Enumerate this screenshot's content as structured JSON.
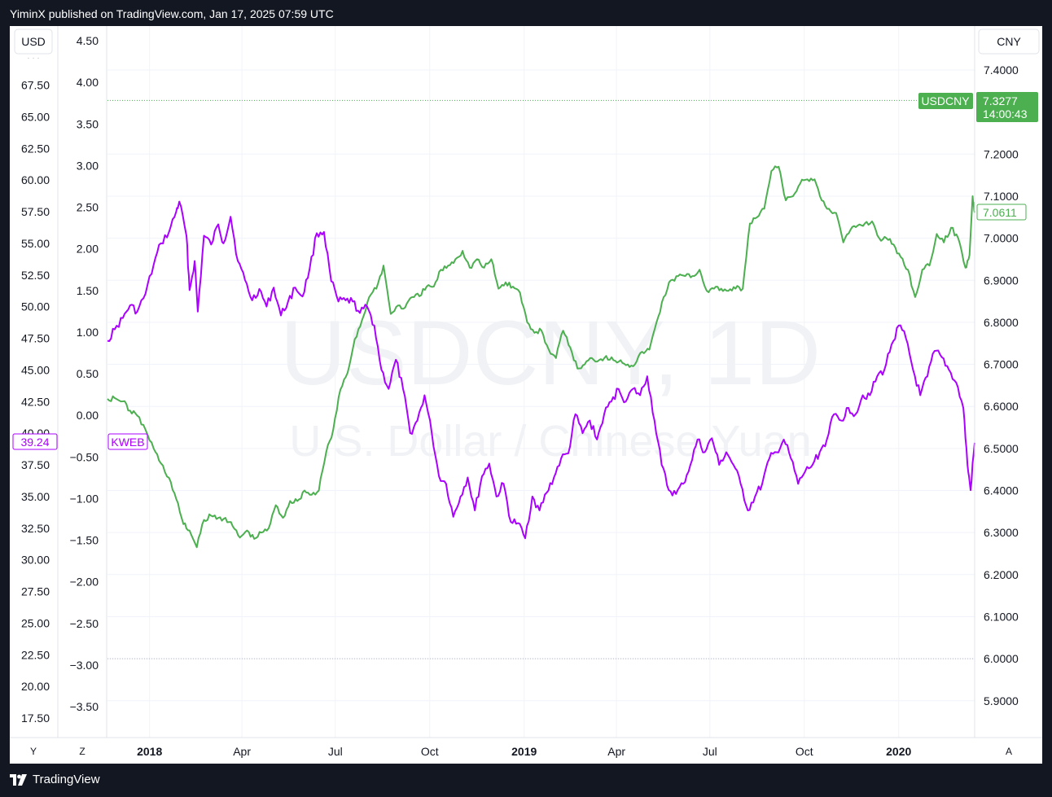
{
  "header": {
    "published": "YiminX published on TradingView.com, Jan 17, 2025 07:59 UTC"
  },
  "footer": {
    "brand": "TradingView"
  },
  "chart_data": {
    "type": "line",
    "watermark": {
      "symbol": "USDCNY, 1D",
      "description": "U.S. Dollar / Chinese Yuan"
    },
    "x_axis": {
      "labels": [
        "2018",
        "Apr",
        "Jul",
        "Oct",
        "2019",
        "Apr",
        "Jul",
        "Oct",
        "2020"
      ],
      "bold": [
        "2018",
        "2019",
        "2020"
      ],
      "range": [
        "2017-11-21",
        "2020-03-15"
      ]
    },
    "left_axis_1": {
      "unit": "USD",
      "ticks": [
        "67.50",
        "65.00",
        "62.50",
        "60.00",
        "57.50",
        "55.00",
        "52.50",
        "50.00",
        "47.50",
        "45.00",
        "42.50",
        "40.00",
        "37.50",
        "35.00",
        "32.50",
        "30.00",
        "27.50",
        "25.00",
        "22.50",
        "20.00",
        "17.50"
      ]
    },
    "left_axis_2": {
      "ticks": [
        "4.50",
        "4.00",
        "3.50",
        "3.00",
        "2.50",
        "2.00",
        "1.50",
        "1.00",
        "0.50",
        "0.00",
        "−0.50",
        "−1.00",
        "−1.50",
        "−2.00",
        "−2.50",
        "−3.00",
        "−3.50"
      ]
    },
    "right_axis": {
      "unit": "CNY",
      "ticks": [
        "7.4000",
        "7.2000",
        "7.1000",
        "7.0000",
        "6.9000",
        "6.8000",
        "6.7000",
        "6.6000",
        "6.5000",
        "6.4000",
        "6.3000",
        "6.2000",
        "6.1000",
        "6.0000",
        "5.9000"
      ]
    },
    "corner_buttons": {
      "bottom_left": "Y",
      "bottom_mid": "Z",
      "bottom_right": "A"
    },
    "reference_lines": {
      "upper_cny": 7.3277,
      "lower_cny": 6.0
    },
    "colors": {
      "usdcny": "#4CAF50",
      "kweb": "#AA00FF",
      "grid": "#F0F3FA",
      "text": "#131722"
    },
    "labels": {
      "usdcny_symbol": "USDCNY",
      "usdcny_live": "7.3277",
      "usdcny_countdown": "14:00:43",
      "usdcny_last": "7.0611",
      "kweb_symbol": "KWEB",
      "kweb_last": "39.24"
    },
    "series": [
      {
        "name": "USDCNY",
        "axis": "CNY",
        "points": [
          [
            "2017-11-21",
            6.618
          ],
          [
            "2017-11-28",
            6.62
          ],
          [
            "2017-12-06",
            6.612
          ],
          [
            "2017-12-13",
            6.59
          ],
          [
            "2017-12-20",
            6.578
          ],
          [
            "2017-12-28",
            6.545
          ],
          [
            "2018-01-05",
            6.5
          ],
          [
            "2018-01-12",
            6.465
          ],
          [
            "2018-01-20",
            6.43
          ],
          [
            "2018-01-27",
            6.38
          ],
          [
            "2018-02-03",
            6.32
          ],
          [
            "2018-02-09",
            6.305
          ],
          [
            "2018-02-16",
            6.265
          ],
          [
            "2018-02-23",
            6.33
          ],
          [
            "2018-03-02",
            6.34
          ],
          [
            "2018-03-09",
            6.335
          ],
          [
            "2018-03-16",
            6.335
          ],
          [
            "2018-03-23",
            6.315
          ],
          [
            "2018-03-30",
            6.288
          ],
          [
            "2018-04-06",
            6.305
          ],
          [
            "2018-04-13",
            6.285
          ],
          [
            "2018-04-20",
            6.3
          ],
          [
            "2018-04-27",
            6.31
          ],
          [
            "2018-05-04",
            6.365
          ],
          [
            "2018-05-11",
            6.335
          ],
          [
            "2018-05-18",
            6.375
          ],
          [
            "2018-05-25",
            6.375
          ],
          [
            "2018-06-01",
            6.4
          ],
          [
            "2018-06-08",
            6.39
          ],
          [
            "2018-06-15",
            6.4
          ],
          [
            "2018-06-22",
            6.49
          ],
          [
            "2018-06-29",
            6.545
          ],
          [
            "2018-07-06",
            6.64
          ],
          [
            "2018-07-13",
            6.68
          ],
          [
            "2018-07-20",
            6.76
          ],
          [
            "2018-07-27",
            6.805
          ],
          [
            "2018-08-03",
            6.86
          ],
          [
            "2018-08-10",
            6.88
          ],
          [
            "2018-08-17",
            6.935
          ],
          [
            "2018-08-24",
            6.82
          ],
          [
            "2018-08-31",
            6.84
          ],
          [
            "2018-09-07",
            6.835
          ],
          [
            "2018-09-14",
            6.86
          ],
          [
            "2018-09-21",
            6.862
          ],
          [
            "2018-09-28",
            6.885
          ],
          [
            "2018-10-05",
            6.885
          ],
          [
            "2018-10-12",
            6.925
          ],
          [
            "2018-10-19",
            6.935
          ],
          [
            "2018-10-26",
            6.95
          ],
          [
            "2018-11-02",
            6.97
          ],
          [
            "2018-11-09",
            6.93
          ],
          [
            "2018-11-16",
            6.95
          ],
          [
            "2018-11-23",
            6.93
          ],
          [
            "2018-11-30",
            6.95
          ],
          [
            "2018-12-07",
            6.88
          ],
          [
            "2018-12-14",
            6.895
          ],
          [
            "2018-12-21",
            6.885
          ],
          [
            "2018-12-28",
            6.87
          ],
          [
            "2019-01-04",
            6.8
          ],
          [
            "2019-01-11",
            6.775
          ],
          [
            "2019-01-18",
            6.78
          ],
          [
            "2019-01-25",
            6.735
          ],
          [
            "2019-02-01",
            6.715
          ],
          [
            "2019-02-08",
            6.78
          ],
          [
            "2019-02-15",
            6.74
          ],
          [
            "2019-02-22",
            6.69
          ],
          [
            "2019-03-01",
            6.7
          ],
          [
            "2019-03-08",
            6.715
          ],
          [
            "2019-03-15",
            6.71
          ],
          [
            "2019-03-22",
            6.72
          ],
          [
            "2019-03-29",
            6.71
          ],
          [
            "2019-04-05",
            6.71
          ],
          [
            "2019-04-12",
            6.7
          ],
          [
            "2019-04-19",
            6.7
          ],
          [
            "2019-04-26",
            6.73
          ],
          [
            "2019-05-03",
            6.735
          ],
          [
            "2019-05-10",
            6.8
          ],
          [
            "2019-05-17",
            6.86
          ],
          [
            "2019-05-24",
            6.9
          ],
          [
            "2019-05-31",
            6.91
          ],
          [
            "2019-06-07",
            6.91
          ],
          [
            "2019-06-14",
            6.91
          ],
          [
            "2019-06-21",
            6.925
          ],
          [
            "2019-06-28",
            6.875
          ],
          [
            "2019-07-05",
            6.88
          ],
          [
            "2019-07-12",
            6.88
          ],
          [
            "2019-07-19",
            6.875
          ],
          [
            "2019-07-26",
            6.88
          ],
          [
            "2019-08-02",
            6.88
          ],
          [
            "2019-08-09",
            7.035
          ],
          [
            "2019-08-16",
            7.05
          ],
          [
            "2019-08-23",
            7.07
          ],
          [
            "2019-08-30",
            7.16
          ],
          [
            "2019-09-06",
            7.17
          ],
          [
            "2019-09-13",
            7.09
          ],
          [
            "2019-09-20",
            7.1
          ],
          [
            "2019-09-27",
            7.13
          ],
          [
            "2019-10-04",
            7.14
          ],
          [
            "2019-10-11",
            7.14
          ],
          [
            "2019-10-18",
            7.09
          ],
          [
            "2019-10-25",
            7.07
          ],
          [
            "2019-11-01",
            7.06
          ],
          [
            "2019-11-08",
            6.99
          ],
          [
            "2019-11-15",
            7.02
          ],
          [
            "2019-11-22",
            7.03
          ],
          [
            "2019-11-29",
            7.035
          ],
          [
            "2019-12-06",
            7.04
          ],
          [
            "2019-12-13",
            7.0
          ],
          [
            "2019-12-20",
            7.0
          ],
          [
            "2019-12-27",
            6.985
          ],
          [
            "2020-01-03",
            6.955
          ],
          [
            "2020-01-10",
            6.925
          ],
          [
            "2020-01-17",
            6.86
          ],
          [
            "2020-01-24",
            6.925
          ],
          [
            "2020-01-31",
            6.935
          ],
          [
            "2020-02-07",
            7.01
          ],
          [
            "2020-02-14",
            6.99
          ],
          [
            "2020-02-21",
            7.025
          ],
          [
            "2020-02-28",
            7.0
          ],
          [
            "2020-03-06",
            6.93
          ],
          [
            "2020-03-10",
            6.96
          ],
          [
            "2020-03-13",
            7.1
          ],
          [
            "2020-03-15",
            7.061
          ]
        ]
      },
      {
        "name": "KWEB",
        "axis": "USD",
        "points": [
          [
            "2017-11-21",
            47.3
          ],
          [
            "2017-11-28",
            48.2
          ],
          [
            "2017-12-06",
            49.1
          ],
          [
            "2017-12-13",
            50.1
          ],
          [
            "2017-12-20",
            49.6
          ],
          [
            "2017-12-28",
            51.0
          ],
          [
            "2018-01-05",
            53.3
          ],
          [
            "2018-01-12",
            55.0
          ],
          [
            "2018-01-20",
            55.9
          ],
          [
            "2018-01-27",
            57.5
          ],
          [
            "2018-01-30",
            58.3
          ],
          [
            "2018-02-06",
            55.6
          ],
          [
            "2018-02-09",
            51.3
          ],
          [
            "2018-02-14",
            53.6
          ],
          [
            "2018-02-17",
            49.6
          ],
          [
            "2018-02-23",
            55.6
          ],
          [
            "2018-03-02",
            54.9
          ],
          [
            "2018-03-09",
            56.5
          ],
          [
            "2018-03-14",
            55.0
          ],
          [
            "2018-03-21",
            57.1
          ],
          [
            "2018-03-28",
            53.6
          ],
          [
            "2018-04-04",
            52.1
          ],
          [
            "2018-04-11",
            50.5
          ],
          [
            "2018-04-18",
            51.4
          ],
          [
            "2018-04-25",
            50.0
          ],
          [
            "2018-05-02",
            51.5
          ],
          [
            "2018-05-09",
            49.3
          ],
          [
            "2018-05-16",
            50.4
          ],
          [
            "2018-05-23",
            51.5
          ],
          [
            "2018-05-30",
            50.8
          ],
          [
            "2018-06-06",
            53.0
          ],
          [
            "2018-06-13",
            55.8
          ],
          [
            "2018-06-20",
            55.9
          ],
          [
            "2018-06-27",
            52.0
          ],
          [
            "2018-07-04",
            50.4
          ],
          [
            "2018-07-11",
            50.5
          ],
          [
            "2018-07-18",
            50.4
          ],
          [
            "2018-07-25",
            49.5
          ],
          [
            "2018-08-01",
            50.0
          ],
          [
            "2018-08-08",
            48.5
          ],
          [
            "2018-08-15",
            45.0
          ],
          [
            "2018-08-22",
            43.5
          ],
          [
            "2018-08-29",
            45.8
          ],
          [
            "2018-09-05",
            43.5
          ],
          [
            "2018-09-12",
            40.0
          ],
          [
            "2018-09-19",
            41.0
          ],
          [
            "2018-09-26",
            43.0
          ],
          [
            "2018-10-03",
            40.0
          ],
          [
            "2018-10-10",
            36.6
          ],
          [
            "2018-10-17",
            36.0
          ],
          [
            "2018-10-24",
            33.4
          ],
          [
            "2018-10-31",
            35.0
          ],
          [
            "2018-11-07",
            36.5
          ],
          [
            "2018-11-14",
            33.9
          ],
          [
            "2018-11-21",
            36.6
          ],
          [
            "2018-11-28",
            37.6
          ],
          [
            "2018-12-05",
            35.0
          ],
          [
            "2018-12-12",
            36.0
          ],
          [
            "2018-12-19",
            33.0
          ],
          [
            "2018-12-26",
            32.9
          ],
          [
            "2019-01-02",
            31.7
          ],
          [
            "2019-01-09",
            35.0
          ],
          [
            "2019-01-16",
            33.9
          ],
          [
            "2019-01-23",
            35.3
          ],
          [
            "2019-01-30",
            36.5
          ],
          [
            "2019-02-06",
            38.0
          ],
          [
            "2019-02-13",
            38.4
          ],
          [
            "2019-02-20",
            41.5
          ],
          [
            "2019-02-27",
            40.0
          ],
          [
            "2019-03-06",
            41.0
          ],
          [
            "2019-03-13",
            39.5
          ],
          [
            "2019-03-20",
            41.5
          ],
          [
            "2019-03-27",
            42.5
          ],
          [
            "2019-04-03",
            43.5
          ],
          [
            "2019-04-10",
            42.5
          ],
          [
            "2019-04-17",
            43.5
          ],
          [
            "2019-04-24",
            43.0
          ],
          [
            "2019-05-01",
            44.5
          ],
          [
            "2019-05-08",
            41.0
          ],
          [
            "2019-05-15",
            37.5
          ],
          [
            "2019-05-22",
            35.5
          ],
          [
            "2019-05-29",
            35.2
          ],
          [
            "2019-06-05",
            36.0
          ],
          [
            "2019-06-12",
            37.5
          ],
          [
            "2019-06-19",
            39.5
          ],
          [
            "2019-06-26",
            38.5
          ],
          [
            "2019-07-03",
            39.6
          ],
          [
            "2019-07-10",
            37.5
          ],
          [
            "2019-07-17",
            38.5
          ],
          [
            "2019-07-24",
            37.5
          ],
          [
            "2019-07-31",
            36.0
          ],
          [
            "2019-08-07",
            33.9
          ],
          [
            "2019-08-14",
            35.0
          ],
          [
            "2019-08-21",
            36.0
          ],
          [
            "2019-08-28",
            38.0
          ],
          [
            "2019-09-04",
            38.5
          ],
          [
            "2019-09-11",
            39.5
          ],
          [
            "2019-09-18",
            38.0
          ],
          [
            "2019-09-25",
            36.0
          ],
          [
            "2019-10-02",
            37.0
          ],
          [
            "2019-10-09",
            37.5
          ],
          [
            "2019-10-16",
            38.5
          ],
          [
            "2019-10-23",
            39.5
          ],
          [
            "2019-10-30",
            41.5
          ],
          [
            "2019-11-06",
            41.0
          ],
          [
            "2019-11-13",
            42.0
          ],
          [
            "2019-11-20",
            41.5
          ],
          [
            "2019-11-27",
            43.0
          ],
          [
            "2019-12-04",
            43.0
          ],
          [
            "2019-12-11",
            44.5
          ],
          [
            "2019-12-18",
            45.0
          ],
          [
            "2019-12-25",
            47.0
          ],
          [
            "2020-01-01",
            48.5
          ],
          [
            "2020-01-08",
            47.5
          ],
          [
            "2020-01-15",
            45.0
          ],
          [
            "2020-01-22",
            43.0
          ],
          [
            "2020-01-29",
            44.5
          ],
          [
            "2020-02-05",
            46.5
          ],
          [
            "2020-02-12",
            46.0
          ],
          [
            "2020-02-19",
            45.0
          ],
          [
            "2020-02-26",
            44.0
          ],
          [
            "2020-03-04",
            42.0
          ],
          [
            "2020-03-08",
            37.5
          ],
          [
            "2020-03-11",
            35.5
          ],
          [
            "2020-03-15",
            39.24
          ]
        ]
      }
    ]
  }
}
